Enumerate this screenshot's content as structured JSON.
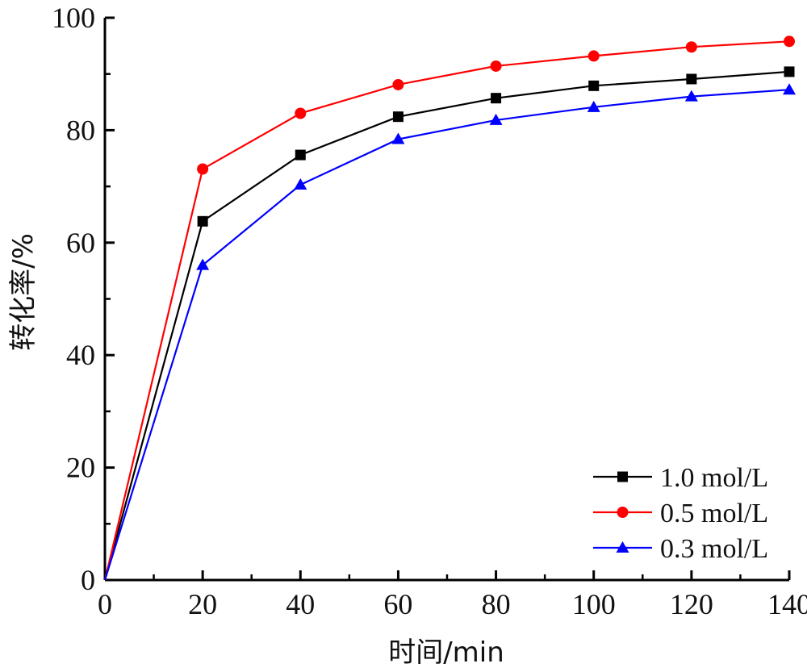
{
  "chart_data": {
    "type": "line",
    "title": "",
    "xlabel": "时间/min",
    "ylabel": "转化率/%",
    "x": [
      0,
      20,
      40,
      60,
      80,
      100,
      120,
      140
    ],
    "xlim": [
      0,
      140
    ],
    "ylim": [
      0,
      100
    ],
    "xticks": [
      "0",
      "20",
      "40",
      "60",
      "80",
      "100",
      "120",
      "140"
    ],
    "yticks": [
      "0",
      "20",
      "40",
      "60",
      "80",
      "100"
    ],
    "grid": false,
    "legend_position": "bottom-right",
    "series": [
      {
        "name": "1.0 mol/L",
        "color": "#000000",
        "marker": "square",
        "values": [
          0,
          63.8,
          75.6,
          82.4,
          85.7,
          87.9,
          89.1,
          90.4
        ]
      },
      {
        "name": "0.5 mol/L",
        "color": "#ff0000",
        "marker": "circle",
        "values": [
          0,
          73.1,
          83.0,
          88.1,
          91.4,
          93.2,
          94.8,
          95.8
        ]
      },
      {
        "name": "0.3 mol/L",
        "color": "#0000ff",
        "marker": "triangle",
        "values": [
          0,
          56.0,
          70.3,
          78.4,
          81.8,
          84.1,
          86.0,
          87.2
        ]
      }
    ]
  }
}
